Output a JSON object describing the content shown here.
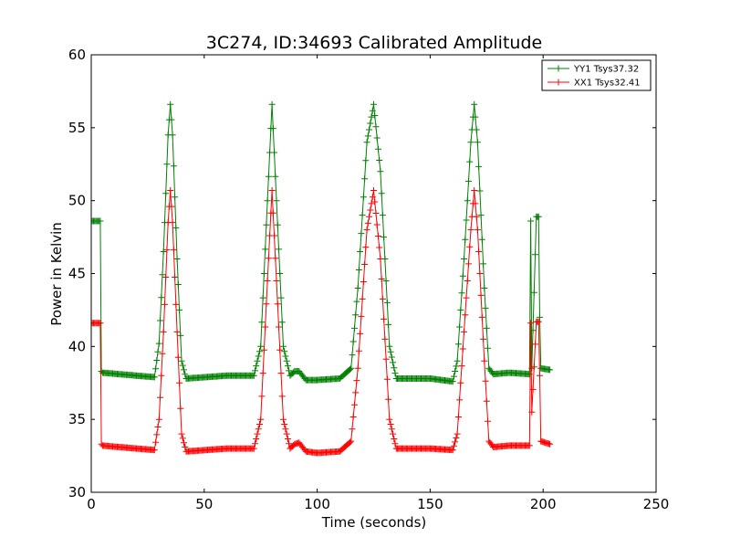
{
  "chart_data": {
    "type": "line",
    "title": "3C274, ID:34693 Calibrated Amplitude",
    "xlabel": "Time (seconds)",
    "ylabel": "Power in Kelvin",
    "xlim": [
      0,
      250
    ],
    "ylim": [
      30,
      60
    ],
    "xticks": [
      "0",
      "50",
      "100",
      "150",
      "200",
      "250"
    ],
    "yticks": [
      "30",
      "35",
      "40",
      "45",
      "50",
      "55",
      "60"
    ],
    "grid": false,
    "legend_position": "top-right",
    "marker": "+",
    "series": [
      {
        "name": "YY1 Tsys37.32",
        "color": "#008000",
        "x": [
          0,
          4,
          4.5,
          5,
          20,
          28,
          30,
          32,
          34,
          35,
          36,
          38,
          40,
          42,
          60,
          72,
          75,
          78,
          80,
          82,
          85,
          88,
          90,
          92,
          95,
          100,
          110,
          115,
          118,
          122,
          125,
          128,
          132,
          135,
          150,
          160,
          162,
          165,
          168,
          169.5,
          171,
          174,
          176,
          178,
          185,
          194,
          194.5,
          195,
          197,
          198,
          198.5,
          199,
          203
        ],
        "y": [
          48.6,
          48.6,
          38.3,
          38.2,
          38.0,
          37.9,
          40.2,
          46.5,
          54.5,
          56.6,
          54.5,
          46.0,
          39.0,
          37.8,
          38.0,
          38.0,
          40.0,
          50.0,
          56.6,
          50.0,
          40.0,
          38.0,
          38.3,
          38.3,
          37.7,
          37.7,
          37.8,
          38.5,
          44.0,
          54.0,
          56.6,
          52.0,
          40.0,
          37.8,
          37.8,
          37.6,
          39.0,
          46.0,
          54.0,
          56.6,
          54.0,
          44.0,
          38.5,
          38.1,
          38.2,
          38.1,
          48.6,
          38.5,
          48.9,
          48.9,
          42.0,
          38.5,
          38.4
        ]
      },
      {
        "name": "XX1 Tsys32.41",
        "color": "#ff0000",
        "x": [
          0,
          4,
          4.5,
          5,
          20,
          28,
          30,
          32,
          34,
          35,
          36,
          38,
          40,
          42,
          60,
          72,
          75,
          78,
          80,
          82,
          85,
          88,
          90,
          92,
          95,
          100,
          110,
          115,
          118,
          122,
          125,
          128,
          132,
          135,
          150,
          160,
          162,
          165,
          168,
          169.5,
          171,
          174,
          176,
          178,
          185,
          194,
          194.5,
          195,
          197,
          198,
          198.5,
          199,
          203
        ],
        "y": [
          41.6,
          41.6,
          33.3,
          33.2,
          33.0,
          32.9,
          35.0,
          41.0,
          48.5,
          50.7,
          48.5,
          41.0,
          34.0,
          32.8,
          33.0,
          33.0,
          35.0,
          44.5,
          50.7,
          44.5,
          35.0,
          33.0,
          33.3,
          33.4,
          32.8,
          32.7,
          32.8,
          33.5,
          38.5,
          48.0,
          50.7,
          46.0,
          35.0,
          33.0,
          33.0,
          32.9,
          34.0,
          41.0,
          48.0,
          50.7,
          48.0,
          39.0,
          33.5,
          33.1,
          33.2,
          33.2,
          41.6,
          35.5,
          41.7,
          41.7,
          38.0,
          33.5,
          33.3
        ]
      }
    ]
  }
}
